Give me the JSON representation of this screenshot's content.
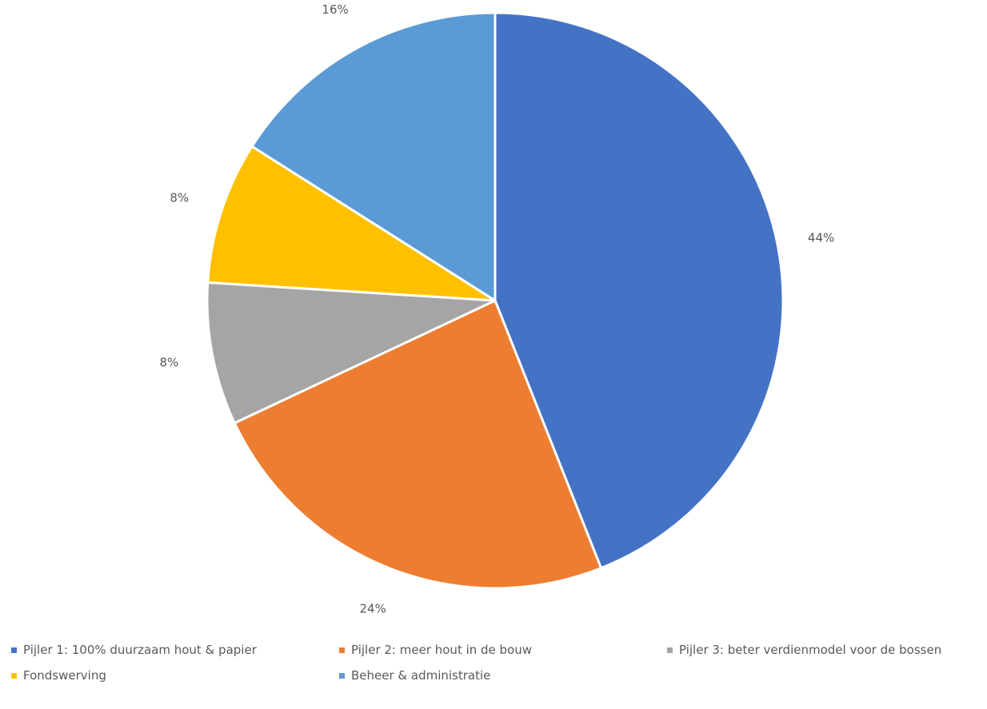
{
  "chart_data": {
    "type": "pie",
    "title": "",
    "slices": [
      {
        "label": "Pijler 1: 100% duurzaam hout & papier",
        "value": 44,
        "value_label": "44%",
        "color": "#4472C4"
      },
      {
        "label": "Pijler 2: meer hout in de bouw",
        "value": 24,
        "value_label": "24%",
        "color": "#ED7D31"
      },
      {
        "label": "Pijler 3: beter verdienmodel voor de bossen",
        "value": 8,
        "value_label": "8%",
        "color": "#A5A5A5"
      },
      {
        "label": "Fondswerving",
        "value": 8,
        "value_label": "8%",
        "color": "#FFC000"
      },
      {
        "label": "Beheer & administratie",
        "value": 16,
        "value_label": "16%",
        "color": "#5B9BD5"
      }
    ],
    "legend_position": "bottom",
    "start_angle": "12 o'clock",
    "direction": "clockwise"
  }
}
